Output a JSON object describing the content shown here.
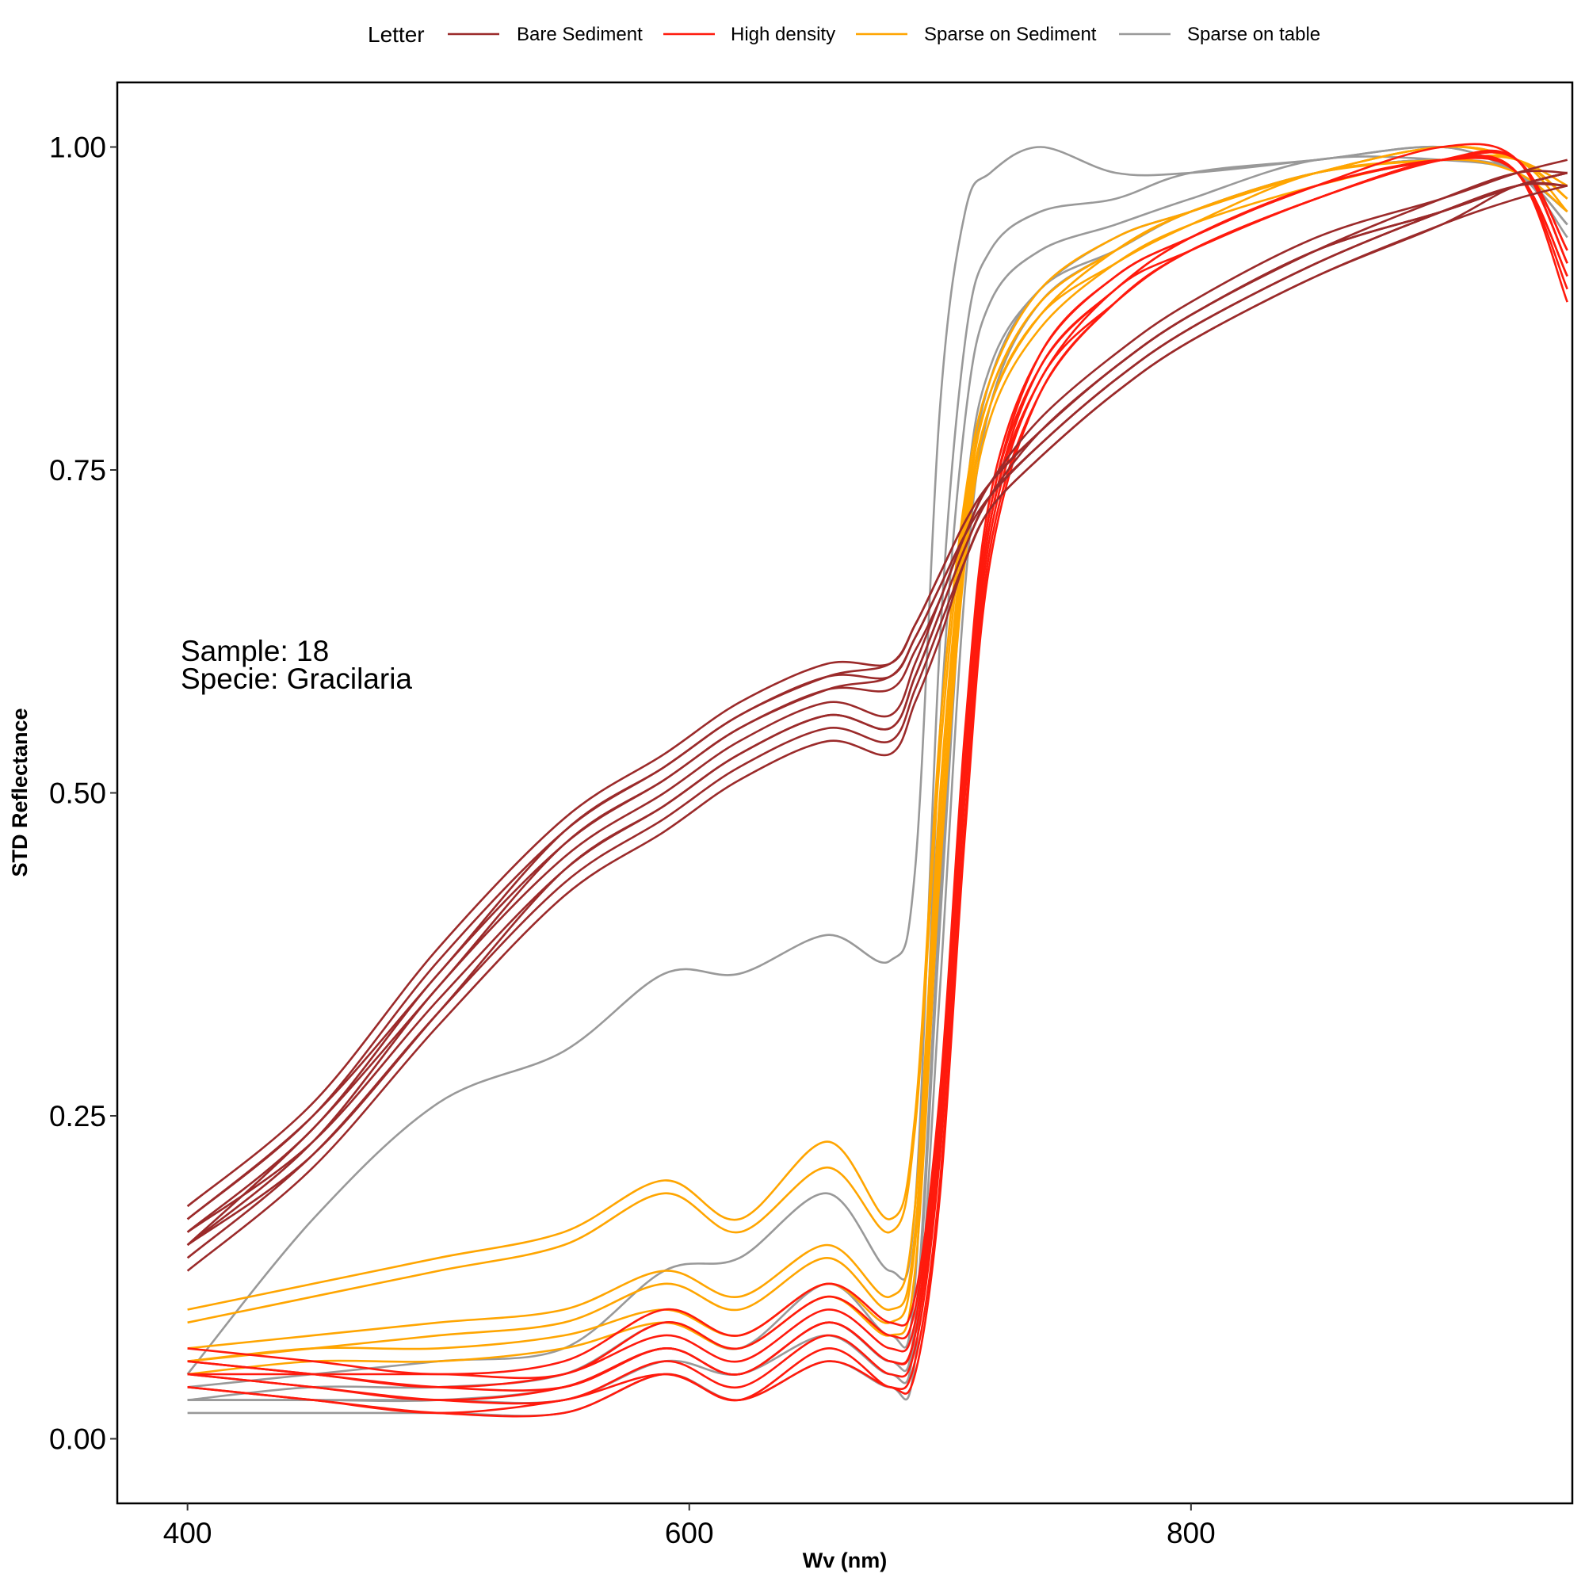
{
  "chart_data": {
    "type": "line",
    "title": "",
    "xlabel": "Wv (nm)",
    "ylabel": "STD Reflectance",
    "xlim": [
      372,
      952
    ],
    "ylim": [
      -0.05,
      1.05
    ],
    "x_ticks": [
      400,
      600,
      800
    ],
    "y_ticks": [
      0.0,
      0.25,
      0.5,
      0.75,
      1.0
    ],
    "x_tick_labels": [
      "400",
      "600",
      "800"
    ],
    "y_tick_labels": [
      "0.00",
      "0.25",
      "0.50",
      "0.75",
      "1.00"
    ],
    "grid": false,
    "legend": {
      "title": "Letter",
      "position": "top",
      "entries": [
        {
          "name": "Bare Sediment",
          "color": "#9b2a2a"
        },
        {
          "name": "High density",
          "color": "#ff1a0d"
        },
        {
          "name": "Sparse on Sediment",
          "color": "#ffa500"
        },
        {
          "name": "Sparse on table",
          "color": "#999999"
        }
      ]
    },
    "annotations": [
      "Sample: 18",
      "Specie: Gracilaria"
    ],
    "x": [
      400,
      450,
      500,
      550,
      590,
      620,
      655,
      680,
      690,
      700,
      710,
      720,
      740,
      770,
      800,
      850,
      900,
      930,
      950
    ],
    "series": [
      {
        "name": "Bare Sediment",
        "color": "#9b2a2a",
        "lines": [
          [
            0.17,
            0.25,
            0.37,
            0.47,
            0.52,
            0.56,
            0.59,
            0.6,
            0.63,
            0.67,
            0.71,
            0.74,
            0.78,
            0.83,
            0.87,
            0.92,
            0.96,
            0.98,
            0.98
          ],
          [
            0.15,
            0.24,
            0.35,
            0.46,
            0.51,
            0.55,
            0.58,
            0.59,
            0.62,
            0.66,
            0.7,
            0.73,
            0.77,
            0.82,
            0.86,
            0.91,
            0.95,
            0.97,
            0.97
          ],
          [
            0.16,
            0.23,
            0.34,
            0.44,
            0.49,
            0.53,
            0.56,
            0.55,
            0.59,
            0.64,
            0.69,
            0.73,
            0.77,
            0.82,
            0.86,
            0.91,
            0.95,
            0.97,
            0.98
          ],
          [
            0.14,
            0.22,
            0.33,
            0.43,
            0.48,
            0.52,
            0.55,
            0.54,
            0.58,
            0.63,
            0.68,
            0.72,
            0.76,
            0.81,
            0.85,
            0.9,
            0.94,
            0.97,
            0.97
          ],
          [
            0.18,
            0.26,
            0.38,
            0.48,
            0.53,
            0.57,
            0.6,
            0.6,
            0.63,
            0.67,
            0.71,
            0.74,
            0.78,
            0.83,
            0.87,
            0.92,
            0.95,
            0.97,
            0.98
          ],
          [
            0.15,
            0.23,
            0.35,
            0.45,
            0.5,
            0.54,
            0.57,
            0.56,
            0.6,
            0.65,
            0.7,
            0.74,
            0.79,
            0.84,
            0.88,
            0.93,
            0.96,
            0.98,
            0.99
          ],
          [
            0.13,
            0.21,
            0.32,
            0.42,
            0.47,
            0.51,
            0.54,
            0.53,
            0.57,
            0.62,
            0.68,
            0.72,
            0.76,
            0.81,
            0.85,
            0.9,
            0.94,
            0.96,
            0.97
          ],
          [
            0.16,
            0.24,
            0.36,
            0.46,
            0.51,
            0.55,
            0.58,
            0.58,
            0.61,
            0.65,
            0.7,
            0.74,
            0.78,
            0.83,
            0.87,
            0.92,
            0.95,
            0.97,
            0.98
          ],
          [
            0.17,
            0.25,
            0.36,
            0.47,
            0.52,
            0.56,
            0.59,
            0.59,
            0.62,
            0.66,
            0.7,
            0.73,
            0.77,
            0.82,
            0.86,
            0.91,
            0.95,
            0.97,
            0.98
          ],
          [
            0.15,
            0.22,
            0.33,
            0.44,
            0.49,
            0.53,
            0.56,
            0.55,
            0.59,
            0.64,
            0.69,
            0.73,
            0.78,
            0.83,
            0.87,
            0.92,
            0.95,
            0.97,
            0.98
          ]
        ]
      },
      {
        "name": "High density",
        "color": "#ff1a0d",
        "lines": [
          [
            0.05,
            0.04,
            0.03,
            0.03,
            0.06,
            0.04,
            0.08,
            0.05,
            0.07,
            0.22,
            0.5,
            0.7,
            0.82,
            0.88,
            0.92,
            0.96,
            0.99,
            0.99,
            0.91
          ],
          [
            0.06,
            0.05,
            0.04,
            0.04,
            0.07,
            0.05,
            0.09,
            0.06,
            0.08,
            0.24,
            0.52,
            0.71,
            0.83,
            0.89,
            0.93,
            0.97,
            0.99,
            0.98,
            0.9
          ],
          [
            0.05,
            0.05,
            0.05,
            0.05,
            0.09,
            0.07,
            0.11,
            0.08,
            0.1,
            0.26,
            0.54,
            0.72,
            0.84,
            0.9,
            0.93,
            0.97,
            0.99,
            0.99,
            0.92
          ],
          [
            0.04,
            0.03,
            0.02,
            0.02,
            0.05,
            0.03,
            0.07,
            0.04,
            0.06,
            0.2,
            0.48,
            0.69,
            0.81,
            0.88,
            0.92,
            0.96,
            0.99,
            0.98,
            0.89
          ],
          [
            0.06,
            0.05,
            0.04,
            0.05,
            0.08,
            0.06,
            0.1,
            0.07,
            0.09,
            0.25,
            0.53,
            0.72,
            0.83,
            0.89,
            0.93,
            0.97,
            1.0,
            0.99,
            0.91
          ],
          [
            0.05,
            0.04,
            0.03,
            0.04,
            0.07,
            0.05,
            0.09,
            0.06,
            0.08,
            0.23,
            0.51,
            0.71,
            0.82,
            0.89,
            0.92,
            0.96,
            0.99,
            0.98,
            0.9
          ],
          [
            0.07,
            0.06,
            0.05,
            0.06,
            0.1,
            0.08,
            0.12,
            0.09,
            0.11,
            0.27,
            0.55,
            0.73,
            0.84,
            0.9,
            0.93,
            0.97,
            0.99,
            0.99,
            0.92
          ],
          [
            0.04,
            0.03,
            0.02,
            0.03,
            0.05,
            0.03,
            0.06,
            0.04,
            0.05,
            0.19,
            0.47,
            0.68,
            0.81,
            0.88,
            0.92,
            0.96,
            0.99,
            0.98,
            0.88
          ]
        ]
      },
      {
        "name": "Sparse on Sediment",
        "color": "#ffa500",
        "lines": [
          [
            0.1,
            0.12,
            0.14,
            0.16,
            0.2,
            0.17,
            0.23,
            0.17,
            0.25,
            0.55,
            0.73,
            0.82,
            0.89,
            0.93,
            0.95,
            0.98,
            1.0,
            0.99,
            0.97
          ],
          [
            0.09,
            0.11,
            0.13,
            0.15,
            0.19,
            0.16,
            0.21,
            0.16,
            0.24,
            0.53,
            0.72,
            0.81,
            0.88,
            0.92,
            0.95,
            0.98,
            1.0,
            0.99,
            0.96
          ],
          [
            0.07,
            0.08,
            0.09,
            0.1,
            0.13,
            0.11,
            0.15,
            0.11,
            0.18,
            0.5,
            0.71,
            0.81,
            0.88,
            0.92,
            0.95,
            0.98,
            0.99,
            0.99,
            0.96
          ],
          [
            0.06,
            0.07,
            0.07,
            0.08,
            0.1,
            0.08,
            0.12,
            0.09,
            0.15,
            0.46,
            0.69,
            0.8,
            0.87,
            0.91,
            0.94,
            0.98,
            0.99,
            0.99,
            0.95
          ],
          [
            0.05,
            0.06,
            0.06,
            0.07,
            0.09,
            0.07,
            0.11,
            0.08,
            0.13,
            0.44,
            0.68,
            0.79,
            0.86,
            0.91,
            0.94,
            0.97,
            0.99,
            0.98,
            0.95
          ],
          [
            0.06,
            0.07,
            0.08,
            0.09,
            0.12,
            0.1,
            0.14,
            0.1,
            0.16,
            0.48,
            0.7,
            0.8,
            0.87,
            0.92,
            0.95,
            0.98,
            1.0,
            0.99,
            0.96
          ]
        ]
      },
      {
        "name": "Sparse on table",
        "color": "#999999",
        "lines": [
          [
            0.05,
            0.17,
            0.26,
            0.3,
            0.36,
            0.36,
            0.39,
            0.37,
            0.44,
            0.8,
            0.95,
            0.98,
            1.0,
            0.98,
            0.98,
            0.99,
            1.0,
            0.98,
            0.95
          ],
          [
            0.04,
            0.05,
            0.06,
            0.07,
            0.13,
            0.14,
            0.19,
            0.13,
            0.18,
            0.62,
            0.85,
            0.92,
            0.95,
            0.96,
            0.98,
            0.99,
            1.0,
            0.98,
            0.95
          ],
          [
            0.03,
            0.04,
            0.04,
            0.05,
            0.09,
            0.07,
            0.12,
            0.08,
            0.12,
            0.55,
            0.79,
            0.88,
            0.92,
            0.94,
            0.96,
            0.99,
            0.99,
            0.98,
            0.94
          ],
          [
            0.03,
            0.03,
            0.03,
            0.03,
            0.06,
            0.05,
            0.08,
            0.05,
            0.08,
            0.4,
            0.7,
            0.82,
            0.89,
            0.92,
            0.95,
            0.98,
            0.99,
            0.98,
            0.94
          ],
          [
            0.02,
            0.02,
            0.02,
            0.02,
            0.05,
            0.03,
            0.06,
            0.04,
            0.06,
            0.35,
            0.66,
            0.8,
            0.88,
            0.92,
            0.95,
            0.98,
            0.99,
            0.98,
            0.93
          ],
          [
            0.03,
            0.03,
            0.03,
            0.04,
            0.07,
            0.05,
            0.09,
            0.06,
            0.09,
            0.42,
            0.72,
            0.83,
            0.89,
            0.93,
            0.95,
            0.98,
            0.99,
            0.98,
            0.94
          ]
        ]
      }
    ]
  }
}
